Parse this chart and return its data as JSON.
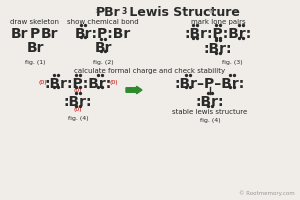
{
  "bg_color": "#f0ede8",
  "text_color": "#2a2a2a",
  "green_color": "#2d8a2d",
  "red_color": "#cc0000",
  "gray_color": "#999999",
  "title_main": "PBr",
  "title_sub": "3",
  "title_rest": " Lewis Structure",
  "title_larrow": "»",
  "title_rarrow": "«",
  "fig1_head": "draw skeleton",
  "fig2_head": "show chemical bond",
  "fig3_head": "mark lone pairs",
  "fig4_head": "calculate formal charge and check stability",
  "stable_label": "stable lewis structure",
  "fig1_tag": "fig. (1)",
  "fig2_tag": "fig. (2)",
  "fig3_tag": "fig. (3)",
  "fig4_tag": "fig. (4)",
  "copyright": "© Rootmemory.com"
}
